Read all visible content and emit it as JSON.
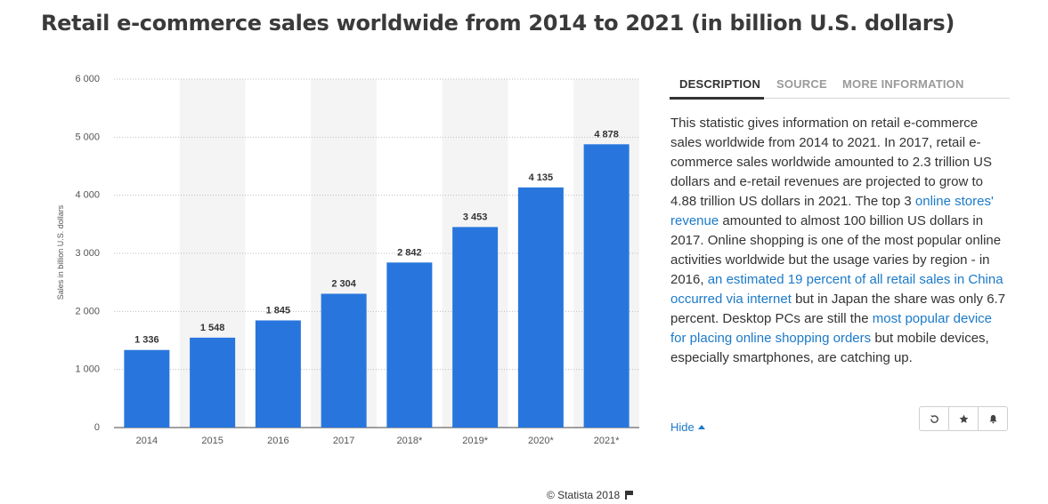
{
  "page_title": "Retail e-commerce sales worldwide from 2014 to 2021 (in billion U.S. dollars)",
  "chart_data": {
    "type": "bar",
    "ylabel": "Sales in billion U.S. dollars",
    "xlabel": "",
    "categories": [
      "2014",
      "2015",
      "2016",
      "2017",
      "2018*",
      "2019*",
      "2020*",
      "2021*"
    ],
    "values": [
      1336,
      1548,
      1845,
      2304,
      2842,
      3453,
      4135,
      4878
    ],
    "value_labels": [
      "1 336",
      "1 548",
      "1 845",
      "2 304",
      "2 842",
      "3 453",
      "4 135",
      "4 878"
    ],
    "ylim": [
      0,
      6000
    ],
    "yticks": [
      0,
      1000,
      2000,
      3000,
      4000,
      5000,
      6000
    ],
    "ytick_labels": [
      "0",
      "1 000",
      "2 000",
      "3 000",
      "4 000",
      "5 000",
      "6 000"
    ],
    "grid": true,
    "bar_color": "#2876dd"
  },
  "tabs": {
    "description": "DESCRIPTION",
    "source": "SOURCE",
    "more_information": "MORE INFORMATION"
  },
  "description": {
    "t1": "This statistic gives information on retail e-commerce sales worldwide from 2014 to 2021. In 2017, retail e-commerce sales worldwide amounted to 2.3 trillion US dollars and e-retail revenues are projected to grow to 4.88 trillion US dollars in 2021. The top 3 ",
    "l1": "online stores' revenue",
    "t2": " amounted to almost 100 billion US dollars in 2017. Online shopping is one of the most popular online activities worldwide but the usage varies by region - in 2016, ",
    "l2": "an estimated 19 percent of all retail sales in China occurred via internet",
    "t3": " but in Japan the share was only 6.7 percent. Desktop PCs are still the ",
    "l3": "most popular device for placing online shopping orders",
    "t4": " but mobile devices, especially smartphones, are catching up."
  },
  "hide_label": "Hide",
  "icons": {
    "history": "history-icon",
    "favorite": "star-icon",
    "notify": "bell-icon",
    "flag": "flag-icon"
  },
  "accent_color": "#1b7ac9",
  "footer": {
    "copyright": "© Statista 2018"
  }
}
